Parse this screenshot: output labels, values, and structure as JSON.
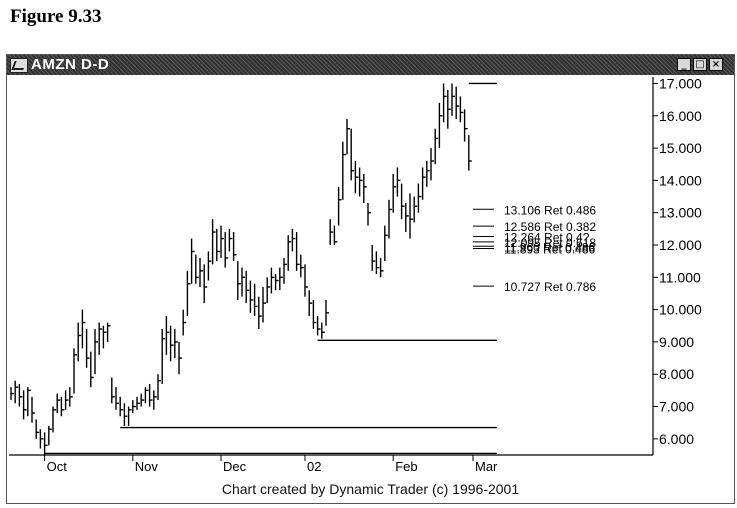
{
  "figure_title": "Figure 9.33",
  "window": {
    "title": "AMZN D-D",
    "minimize_label": "_",
    "maximize_label": "□",
    "close_label": "×"
  },
  "footer": "Chart created by Dynamic Trader (c) 1996-2001",
  "colors": {
    "titlebar": "#3b3b3b",
    "ink": "#000000",
    "background": "#ffffff"
  },
  "chart_data": {
    "type": "ohlc",
    "title": "AMZN D-D",
    "ylim": [
      5.5,
      17.2
    ],
    "y_ticks": [
      "6.000",
      "7.000",
      "8.000",
      "9.000",
      "10.000",
      "11.000",
      "12.000",
      "13.000",
      "14.000",
      "15.000",
      "16.000",
      "17.000"
    ],
    "x_ticks": [
      "Oct",
      "Nov",
      "Dec",
      "02",
      "Feb",
      "Mar"
    ],
    "x_tick_index": [
      8,
      29,
      50,
      70,
      91,
      110
    ],
    "bars": [
      {
        "h": 7.6,
        "l": 7.2,
        "c": 7.4
      },
      {
        "h": 7.8,
        "l": 7.1,
        "c": 7.6
      },
      {
        "h": 7.7,
        "l": 7.0,
        "c": 7.3
      },
      {
        "h": 7.5,
        "l": 6.6,
        "c": 6.9
      },
      {
        "h": 7.6,
        "l": 6.7,
        "c": 7.5
      },
      {
        "h": 7.3,
        "l": 6.5,
        "c": 6.8
      },
      {
        "h": 6.6,
        "l": 6.0,
        "c": 6.2
      },
      {
        "h": 6.3,
        "l": 5.7,
        "c": 6.0
      },
      {
        "h": 6.2,
        "l": 5.5,
        "c": 5.8
      },
      {
        "h": 6.4,
        "l": 5.8,
        "c": 6.3
      },
      {
        "h": 7.0,
        "l": 6.2,
        "c": 6.9
      },
      {
        "h": 7.4,
        "l": 6.8,
        "c": 7.2
      },
      {
        "h": 7.3,
        "l": 6.7,
        "c": 6.9
      },
      {
        "h": 7.5,
        "l": 6.9,
        "c": 7.2
      },
      {
        "h": 7.6,
        "l": 7.0,
        "c": 7.3
      },
      {
        "h": 8.8,
        "l": 7.4,
        "c": 8.6
      },
      {
        "h": 9.6,
        "l": 8.4,
        "c": 9.2
      },
      {
        "h": 10.0,
        "l": 8.8,
        "c": 9.6
      },
      {
        "h": 9.4,
        "l": 8.2,
        "c": 8.5
      },
      {
        "h": 8.7,
        "l": 7.6,
        "c": 7.9
      },
      {
        "h": 9.4,
        "l": 8.0,
        "c": 9.0
      },
      {
        "h": 9.6,
        "l": 8.6,
        "c": 9.4
      },
      {
        "h": 9.5,
        "l": 8.8,
        "c": 9.3
      },
      {
        "h": 9.6,
        "l": 9.0,
        "c": 9.5
      },
      {
        "h": 7.9,
        "l": 7.1,
        "c": 7.3
      },
      {
        "h": 7.6,
        "l": 6.9,
        "c": 7.1
      },
      {
        "h": 7.3,
        "l": 6.7,
        "c": 6.9
      },
      {
        "h": 7.1,
        "l": 6.4,
        "c": 6.7
      },
      {
        "h": 7.0,
        "l": 6.4,
        "c": 6.9
      },
      {
        "h": 7.2,
        "l": 6.8,
        "c": 7.0
      },
      {
        "h": 7.3,
        "l": 6.9,
        "c": 7.1
      },
      {
        "h": 7.4,
        "l": 7.0,
        "c": 7.2
      },
      {
        "h": 7.6,
        "l": 7.1,
        "c": 7.5
      },
      {
        "h": 7.7,
        "l": 7.0,
        "c": 7.2
      },
      {
        "h": 7.5,
        "l": 6.9,
        "c": 7.3
      },
      {
        "h": 8.0,
        "l": 7.2,
        "c": 7.8
      },
      {
        "h": 9.4,
        "l": 7.7,
        "c": 9.1
      },
      {
        "h": 9.8,
        "l": 8.6,
        "c": 9.3
      },
      {
        "h": 9.5,
        "l": 8.4,
        "c": 8.9
      },
      {
        "h": 9.4,
        "l": 8.5,
        "c": 9.0
      },
      {
        "h": 9.0,
        "l": 8.0,
        "c": 8.5
      },
      {
        "h": 10.0,
        "l": 9.2,
        "c": 9.6
      },
      {
        "h": 11.2,
        "l": 9.8,
        "c": 10.8
      },
      {
        "h": 12.2,
        "l": 10.8,
        "c": 11.8
      },
      {
        "h": 11.7,
        "l": 10.8,
        "c": 11.0
      },
      {
        "h": 11.6,
        "l": 10.7,
        "c": 11.2
      },
      {
        "h": 11.4,
        "l": 10.2,
        "c": 10.7
      },
      {
        "h": 11.8,
        "l": 10.9,
        "c": 11.5
      },
      {
        "h": 12.8,
        "l": 11.4,
        "c": 12.4
      },
      {
        "h": 12.5,
        "l": 11.5,
        "c": 11.8
      },
      {
        "h": 12.6,
        "l": 11.6,
        "c": 12.2
      },
      {
        "h": 12.4,
        "l": 11.3,
        "c": 11.6
      },
      {
        "h": 12.5,
        "l": 11.8,
        "c": 12.2
      },
      {
        "h": 12.4,
        "l": 11.5,
        "c": 11.7
      },
      {
        "h": 11.5,
        "l": 10.3,
        "c": 10.8
      },
      {
        "h": 11.3,
        "l": 10.4,
        "c": 11.0
      },
      {
        "h": 11.2,
        "l": 10.2,
        "c": 10.6
      },
      {
        "h": 10.9,
        "l": 9.9,
        "c": 10.3
      },
      {
        "h": 10.8,
        "l": 9.8,
        "c": 10.1
      },
      {
        "h": 10.4,
        "l": 9.4,
        "c": 9.8
      },
      {
        "h": 10.7,
        "l": 9.6,
        "c": 10.2
      },
      {
        "h": 11.0,
        "l": 10.2,
        "c": 10.7
      },
      {
        "h": 11.3,
        "l": 10.5,
        "c": 11.0
      },
      {
        "h": 11.1,
        "l": 10.6,
        "c": 10.9
      },
      {
        "h": 11.3,
        "l": 10.6,
        "c": 11.0
      },
      {
        "h": 11.6,
        "l": 10.8,
        "c": 11.4
      },
      {
        "h": 12.3,
        "l": 11.2,
        "c": 12.1
      },
      {
        "h": 12.5,
        "l": 11.8,
        "c": 12.2
      },
      {
        "h": 12.4,
        "l": 11.2,
        "c": 11.4
      },
      {
        "h": 11.7,
        "l": 11.0,
        "c": 11.3
      },
      {
        "h": 11.4,
        "l": 10.4,
        "c": 10.7
      },
      {
        "h": 10.6,
        "l": 9.8,
        "c": 10.2
      },
      {
        "h": 10.3,
        "l": 9.4,
        "c": 9.6
      },
      {
        "h": 9.8,
        "l": 9.2,
        "c": 9.4
      },
      {
        "h": 9.6,
        "l": 9.1,
        "c": 9.3
      },
      {
        "h": 10.3,
        "l": 9.5,
        "c": 9.9
      },
      {
        "h": 12.8,
        "l": 12.0,
        "c": 12.4
      },
      {
        "h": 12.6,
        "l": 12.0,
        "c": 12.1
      },
      {
        "h": 13.8,
        "l": 12.6,
        "c": 13.4
      },
      {
        "h": 15.2,
        "l": 13.4,
        "c": 14.8
      },
      {
        "h": 15.9,
        "l": 14.8,
        "c": 15.6
      },
      {
        "h": 15.6,
        "l": 14.0,
        "c": 14.3
      },
      {
        "h": 14.6,
        "l": 13.6,
        "c": 14.1
      },
      {
        "h": 14.4,
        "l": 13.5,
        "c": 14.0
      },
      {
        "h": 14.2,
        "l": 13.3,
        "c": 13.8
      },
      {
        "h": 13.3,
        "l": 12.6,
        "c": 13.0
      },
      {
        "h": 12.0,
        "l": 11.2,
        "c": 11.5
      },
      {
        "h": 11.8,
        "l": 11.1,
        "c": 11.3
      },
      {
        "h": 11.6,
        "l": 11.0,
        "c": 11.2
      },
      {
        "h": 12.6,
        "l": 11.5,
        "c": 12.3
      },
      {
        "h": 13.4,
        "l": 12.2,
        "c": 13.1
      },
      {
        "h": 14.2,
        "l": 13.0,
        "c": 13.8
      },
      {
        "h": 14.4,
        "l": 13.5,
        "c": 14.0
      },
      {
        "h": 13.9,
        "l": 12.8,
        "c": 13.2
      },
      {
        "h": 13.3,
        "l": 12.4,
        "c": 12.9
      },
      {
        "h": 13.6,
        "l": 12.2,
        "c": 12.8
      },
      {
        "h": 13.5,
        "l": 12.7,
        "c": 13.2
      },
      {
        "h": 13.9,
        "l": 13.0,
        "c": 13.5
      },
      {
        "h": 14.4,
        "l": 13.4,
        "c": 14.1
      },
      {
        "h": 14.6,
        "l": 13.8,
        "c": 14.3
      },
      {
        "h": 15.0,
        "l": 14.0,
        "c": 14.6
      },
      {
        "h": 15.6,
        "l": 14.5,
        "c": 15.3
      },
      {
        "h": 16.4,
        "l": 15.0,
        "c": 16.0
      },
      {
        "h": 17.0,
        "l": 15.8,
        "c": 16.6
      },
      {
        "h": 16.8,
        "l": 15.6,
        "c": 16.2
      },
      {
        "h": 17.0,
        "l": 16.0,
        "c": 16.6
      },
      {
        "h": 16.9,
        "l": 15.9,
        "c": 16.3
      },
      {
        "h": 16.6,
        "l": 15.8,
        "c": 16.1
      },
      {
        "h": 16.2,
        "l": 15.2,
        "c": 15.6
      },
      {
        "h": 15.4,
        "l": 14.3,
        "c": 14.6
      }
    ],
    "horizontal_lines": [
      {
        "y": 17.0,
        "from_index": 109
      },
      {
        "y": 9.05,
        "from_index": 73
      },
      {
        "y": 6.35,
        "from_index": 26
      },
      {
        "y": 5.55,
        "from_index": 8
      }
    ],
    "retracements": [
      {
        "label": "13.106 Ret 0.486",
        "y": 13.106
      },
      {
        "label": "12.586 Ret 0.382",
        "y": 12.586
      },
      {
        "label": "12.264 Ret 0.4?",
        "y": 12.264
      },
      {
        "label": "12.095 Ret 0.618",
        "y": 12.095
      },
      {
        "label": "11.960 Ret 0.486",
        "y": 11.96
      },
      {
        "label": "11.893 Ret 0.486",
        "y": 11.893
      },
      {
        "label": "10.727 Ret 0.786",
        "y": 10.727
      }
    ]
  }
}
